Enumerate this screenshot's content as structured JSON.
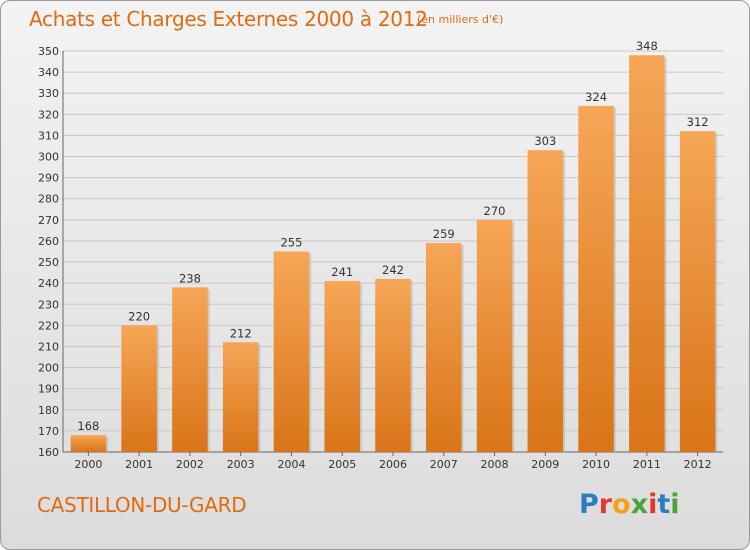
{
  "title": "Achats et Charges Externes 2000 à 2012",
  "subtitle": "(en milliers d'€)",
  "place": "CASTILLON-DU-GARD",
  "logo": {
    "text": [
      "P",
      "r",
      "o",
      "x",
      "i",
      "t",
      "i"
    ],
    "colors": [
      "#2b7fc1",
      "#e03a2a",
      "#f2a21a",
      "#4aa43a",
      "#e03a2a",
      "#2b7fc1",
      "#4aa43a"
    ]
  },
  "colors": {
    "accent": "#e06a10",
    "bar_top": "#f6a657",
    "bar_bottom": "#d97418"
  },
  "chart_data": {
    "type": "bar",
    "title": "Achats et Charges Externes 2000 à 2012",
    "subtitle": "(en milliers d'€)",
    "categories": [
      "2000",
      "2001",
      "2002",
      "2003",
      "2004",
      "2005",
      "2006",
      "2007",
      "2008",
      "2009",
      "2010",
      "2011",
      "2012"
    ],
    "values": [
      168,
      220,
      238,
      212,
      255,
      241,
      242,
      259,
      270,
      303,
      324,
      348,
      312
    ],
    "ylim": [
      160,
      350
    ],
    "ytick_step": 10,
    "grid": true,
    "legend": "none"
  }
}
